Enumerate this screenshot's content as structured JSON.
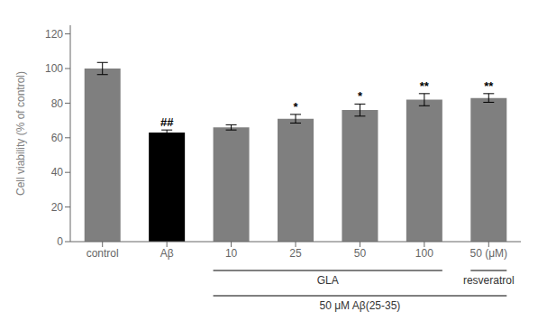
{
  "chart_data": {
    "type": "bar",
    "categories": [
      "control",
      "Aβ",
      "10",
      "25",
      "50",
      "100",
      "50 (μM)"
    ],
    "values": [
      100,
      63,
      66,
      71,
      76,
      82,
      83
    ],
    "errors": [
      3.5,
      1.5,
      1.5,
      2.5,
      3.5,
      3.5,
      2.5
    ],
    "colors": [
      "#7f7f7f",
      "#000000",
      "#7f7f7f",
      "#7f7f7f",
      "#7f7f7f",
      "#7f7f7f",
      "#7f7f7f"
    ],
    "ylabel": "Cell viability (% of control)",
    "ylim": [
      0,
      125
    ],
    "yticks": [
      0,
      20,
      40,
      60,
      80,
      100,
      120
    ],
    "grid": false,
    "annotations": [
      {
        "category": "Aβ",
        "text": "##"
      },
      {
        "category": "25",
        "text": "*"
      },
      {
        "category": "50",
        "text": "*"
      },
      {
        "category": "100",
        "text": "**"
      },
      {
        "category": "50 (μM)",
        "text": "**"
      }
    ],
    "groups": [
      {
        "text": "GLA",
        "from": "10",
        "to": "100"
      },
      {
        "text": "resveratrol",
        "from": "50 (μM)",
        "to": "50 (μM)"
      },
      {
        "text": "50 μM  Aβ(25-35)",
        "from": "10",
        "to": "50 (μM)"
      }
    ]
  }
}
